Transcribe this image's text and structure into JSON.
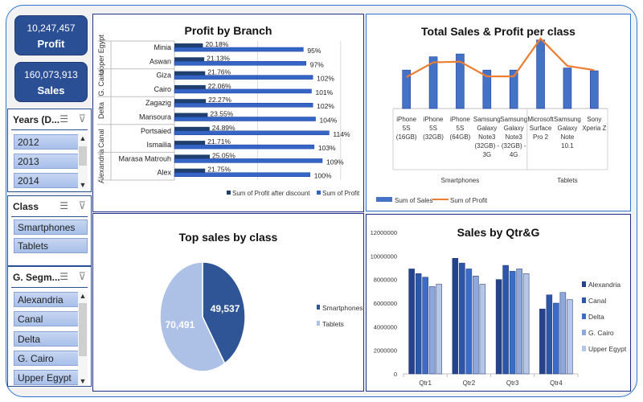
{
  "kpis": [
    {
      "value": "10,247,457",
      "label": "Profit"
    },
    {
      "value": "160,073,913",
      "label": "Sales"
    }
  ],
  "slicers": {
    "years": {
      "title": "Years (D...",
      "items": [
        "2012",
        "2013",
        "2014"
      ]
    },
    "class": {
      "title": "Class",
      "items": [
        "Smartphones",
        "Tablets"
      ]
    },
    "segment": {
      "title": "G. Segm...",
      "items": [
        "Alexandria",
        "Canal",
        "Delta",
        "G. Cairo",
        "Upper Egypt"
      ]
    }
  },
  "icons": {
    "multiselect": "☰",
    "clear_filter": "⊽"
  },
  "chart_data": [
    {
      "id": "profit_by_branch",
      "type": "bar",
      "orientation": "horizontal",
      "title": "Profit by Branch",
      "groups": [
        {
          "name": "Upper Egypt",
          "categories": [
            "Minia",
            "Aswan"
          ]
        },
        {
          "name": "G. Cairo",
          "categories": [
            "Giza",
            "Cairo"
          ]
        },
        {
          "name": "Delta",
          "categories": [
            "Zagazig",
            "Mansoura"
          ]
        },
        {
          "name": "Canal",
          "categories": [
            "Portsaied",
            "Ismailia"
          ]
        },
        {
          "name": "Alexandria",
          "categories": [
            "Marasa Matrouh",
            "Alex"
          ]
        }
      ],
      "categories": [
        "Minia",
        "Aswan",
        "Giza",
        "Cairo",
        "Zagazig",
        "Mansoura",
        "Portsaied",
        "Ismailia",
        "Marasa Matrouh",
        "Alex"
      ],
      "series": [
        {
          "name": "Sum of Profit after discount",
          "values": [
            20.18,
            21.13,
            21.76,
            22.06,
            22.27,
            23.55,
            24.89,
            21.71,
            25.05,
            21.75
          ],
          "labels": [
            "20.18%",
            "21.13%",
            "21.76%",
            "22.06%",
            "22.27%",
            "23.55%",
            "24.89%",
            "21.71%",
            "25.05%",
            "21.75%"
          ],
          "color": "#1f3f6e"
        },
        {
          "name": "Sum of Profit",
          "values": [
            95,
            97,
            102,
            101,
            102,
            104,
            114,
            103,
            109,
            100
          ],
          "labels": [
            "95%",
            "97%",
            "102%",
            "101%",
            "102%",
            "104%",
            "114%",
            "103%",
            "109%",
            "100%"
          ],
          "color": "#3465c5"
        }
      ],
      "xlim": [
        0,
        120
      ],
      "legend": "bottom"
    },
    {
      "id": "sales_profit_per_class",
      "type": "bar",
      "combo": "bar+line",
      "title": "Total Sales & Profit per class",
      "groups": [
        {
          "name": "Smartphones",
          "categories": [
            "iPhone 5S (16GB)",
            "iPhone 5S (32GB)",
            "iPhone 5S (64GB)",
            "Samsung Galaxy Note3 (32GB) - 3G",
            "Samsung Galaxy Note3 (32GB) - 4G"
          ]
        },
        {
          "name": "Tablets",
          "categories": [
            "Microsoft Surface Pro 2",
            "Samsung Galaxy Note 10.1",
            "Sony Xperia Z"
          ]
        }
      ],
      "categories": [
        "iPhone 5S (16GB)",
        "iPhone 5S (32GB)",
        "iPhone 5S (64GB)",
        "Samsung Galaxy Note3 (32GB) - 3G",
        "Samsung Galaxy Note3 (32GB) - 4G",
        "Microsoft Surface Pro 2",
        "Samsung Galaxy Note 10.1",
        "Sony Xperia Z"
      ],
      "category_lines": [
        [
          "iPhone",
          "5S",
          "(16GB)"
        ],
        [
          "iPhone",
          "5S",
          "(32GB)"
        ],
        [
          "iPhone",
          "5S",
          "(64GB)"
        ],
        [
          "Samsung",
          "Galaxy",
          "Note3",
          "(32GB) -",
          "3G"
        ],
        [
          "Samsung",
          "Galaxy",
          "Note3",
          "(32GB) -",
          "4G"
        ],
        [
          "Microsoft",
          "Surface",
          "Pro 2"
        ],
        [
          "Samsung",
          "Galaxy",
          "Note",
          "10.1"
        ],
        [
          "Sony",
          "Xperia Z"
        ]
      ],
      "series": [
        {
          "name": "Sum of Sales",
          "kind": "bar",
          "values": [
            0.55,
            0.74,
            0.78,
            0.55,
            0.55,
            0.98,
            0.58,
            0.54
          ],
          "color": "#4472c4"
        },
        {
          "name": "Sum of Profit",
          "kind": "line",
          "values": [
            0.45,
            0.66,
            0.67,
            0.46,
            0.46,
            1.0,
            0.61,
            0.55
          ],
          "color": "#ed7d31"
        }
      ],
      "ylim": [
        0,
        1
      ],
      "legend": "bottom-left"
    },
    {
      "id": "top_sales_by_class",
      "type": "pie",
      "title": "Top sales by class",
      "categories": [
        "Smartphones",
        "Tablets"
      ],
      "values": [
        49537,
        70491
      ],
      "labels": [
        "49,537",
        "70,491"
      ],
      "colors": [
        "#2f5597",
        "#adc0e6"
      ],
      "legend": "right"
    },
    {
      "id": "sales_by_qtr_g",
      "type": "bar",
      "title": "Sales by Qtr&G",
      "categories": [
        "Qtr1",
        "Qtr2",
        "Qtr3",
        "Qtr4"
      ],
      "series": [
        {
          "name": "Alexandria",
          "values": [
            8900000,
            9800000,
            8000000,
            5500000
          ],
          "color": "#25438a"
        },
        {
          "name": "Canal",
          "values": [
            8500000,
            9400000,
            9200000,
            6700000
          ],
          "color": "#2d55a8"
        },
        {
          "name": "Delta",
          "values": [
            8200000,
            8900000,
            8700000,
            6000000
          ],
          "color": "#3a6cc8"
        },
        {
          "name": "G. Cairo",
          "values": [
            7400000,
            8300000,
            8900000,
            6900000
          ],
          "color": "#8ea8dc"
        },
        {
          "name": "Upper Egypt",
          "values": [
            7600000,
            7600000,
            8500000,
            6300000
          ],
          "color": "#b6c6e8"
        }
      ],
      "yticks": [
        "0",
        "2000000",
        "4000000",
        "6000000",
        "8000000",
        "10000000",
        "12000000"
      ],
      "ylim": [
        0,
        12000000
      ],
      "legend": "right"
    }
  ]
}
